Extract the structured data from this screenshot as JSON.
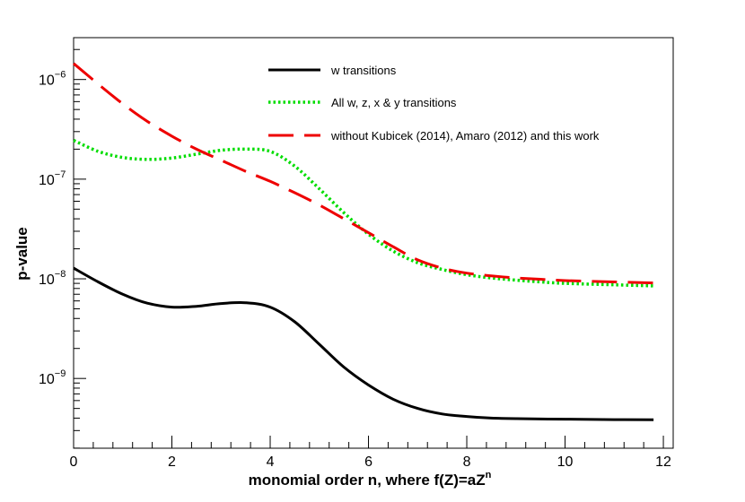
{
  "chart_data": {
    "type": "line",
    "title": "",
    "xlabel_main": "monomial order n, where f(Z)=aZ",
    "xlabel_sup": "n",
    "ylabel": "p-value",
    "xlim": [
      0,
      12.2
    ],
    "ylim_log10": [
      -9.7,
      -5.58
    ],
    "y_scale": "log",
    "x_ticks": [
      0,
      2,
      4,
      6,
      8,
      10,
      12
    ],
    "x_tick_labels": [
      "0",
      "2",
      "4",
      "6",
      "8",
      "10",
      "12"
    ],
    "y_ticks_log10": [
      -9,
      -8,
      -7,
      -6
    ],
    "y_tick_labels": [
      {
        "base": "10",
        "exp": "−9"
      },
      {
        "base": "10",
        "exp": "−8"
      },
      {
        "base": "10",
        "exp": "−7"
      },
      {
        "base": "10",
        "exp": "−6"
      }
    ],
    "grid": false,
    "legend_position": "top-center",
    "series": [
      {
        "name": "w transitions",
        "color": "#000000",
        "style": "solid",
        "x": [
          0,
          0.5,
          1,
          1.5,
          2,
          2.5,
          3,
          3.5,
          4,
          4.5,
          5,
          5.5,
          6,
          6.5,
          7,
          7.5,
          8,
          8.5,
          9,
          9.5,
          10,
          11,
          11.8
        ],
        "y": [
          1.28e-08,
          9.3e-09,
          7e-09,
          5.7e-09,
          5.2e-09,
          5.3e-09,
          5.65e-09,
          5.75e-09,
          5.2e-09,
          3.7e-09,
          2.2e-09,
          1.3e-09,
          8.6e-10,
          6.2e-10,
          5e-10,
          4.4e-10,
          4.15e-10,
          4e-10,
          3.95e-10,
          3.92e-10,
          3.9e-10,
          3.86e-10,
          3.85e-10
        ]
      },
      {
        "name": "All w, z, x & y transitions",
        "color": "#00dd00",
        "style": "dotted",
        "x": [
          0,
          0.5,
          1,
          1.5,
          2,
          2.5,
          3,
          3.5,
          4,
          4.5,
          5,
          5.5,
          6,
          6.5,
          7,
          7.5,
          8,
          8.5,
          9,
          9.5,
          10,
          11,
          11.8
        ],
        "y": [
          2.45e-07,
          1.9e-07,
          1.65e-07,
          1.58e-07,
          1.63e-07,
          1.78e-07,
          1.95e-07,
          2e-07,
          1.9e-07,
          1.35e-07,
          8e-08,
          4.6e-08,
          2.8e-08,
          1.9e-08,
          1.45e-08,
          1.24e-08,
          1.1e-08,
          1.02e-08,
          9.7e-09,
          9.3e-09,
          9e-09,
          8.7e-09,
          8.5e-09
        ]
      },
      {
        "name": " without Kubicek (2014), Amaro (2012) and this work",
        "color": "#ee0000",
        "style": "dashed",
        "x": [
          0,
          0.5,
          1,
          1.5,
          2,
          2.5,
          3,
          3.5,
          4,
          4.5,
          5,
          5.5,
          6,
          6.5,
          7,
          7.5,
          8,
          8.5,
          9,
          9.5,
          10,
          11,
          11.8
        ],
        "y": [
          1.45e-06,
          9e-07,
          5.7e-07,
          3.8e-07,
          2.7e-07,
          2e-07,
          1.55e-07,
          1.2e-07,
          9.5e-08,
          7.3e-08,
          5.5e-08,
          4e-08,
          2.9e-08,
          2.1e-08,
          1.55e-08,
          1.28e-08,
          1.14e-08,
          1.07e-08,
          1.02e-08,
          9.9e-09,
          9.6e-09,
          9.3e-09,
          9.1e-09
        ]
      }
    ]
  }
}
